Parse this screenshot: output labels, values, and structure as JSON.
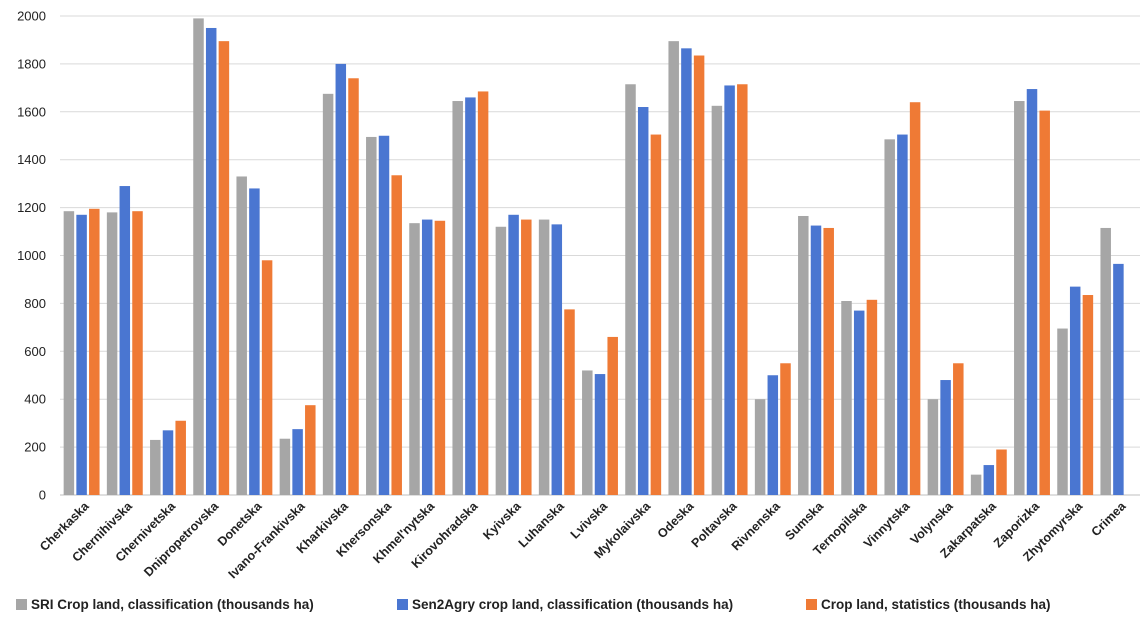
{
  "chart_data": {
    "type": "bar",
    "title": "",
    "xlabel": "",
    "ylabel": "",
    "ylim": [
      0,
      2000
    ],
    "yticks": [
      0,
      200,
      400,
      600,
      800,
      1000,
      1200,
      1400,
      1600,
      1800,
      2000
    ],
    "grid": true,
    "legend_position": "bottom",
    "categories": [
      "Cherkaska",
      "Chernihivska",
      "Chernivetska",
      "Dnipropetrovska",
      "Donetska",
      "Ivano-Frankivska",
      "Kharkivska",
      "Khersonska",
      "Khmel'nytska",
      "Kirovohradska",
      "Kyivska",
      "Luhanska",
      "Lvivska",
      "Mykolaivska",
      "Odeska",
      "Poltavska",
      "Rivnenska",
      "Sumska",
      "Ternopilska",
      "Vinnytska",
      "Volynska",
      "Zakarpatska",
      "Zaporizka",
      "Zhytomyrska",
      "Crimea"
    ],
    "series": [
      {
        "name": "SRI Crop land, classification (thousands ha)",
        "color": "#a6a6a6",
        "values": [
          1185,
          1180,
          230,
          1990,
          1330,
          235,
          1675,
          1495,
          1135,
          1645,
          1120,
          1150,
          520,
          1715,
          1895,
          1625,
          400,
          1165,
          810,
          1485,
          400,
          85,
          1645,
          695,
          1115
        ]
      },
      {
        "name": "Sen2Agry crop land, classification (thousands ha)",
        "color": "#4a76d1",
        "values": [
          1170,
          1290,
          270,
          1950,
          1280,
          275,
          1800,
          1500,
          1150,
          1660,
          1170,
          1130,
          505,
          1620,
          1865,
          1710,
          500,
          1125,
          770,
          1505,
          480,
          125,
          1695,
          870,
          965
        ]
      },
      {
        "name": "Crop land, statistics (thousands ha)",
        "color": "#ef7a35",
        "values": [
          1195,
          1185,
          310,
          1895,
          980,
          375,
          1740,
          1335,
          1145,
          1685,
          1150,
          775,
          660,
          1505,
          1835,
          1715,
          550,
          1115,
          815,
          1640,
          550,
          190,
          1605,
          835,
          null
        ]
      }
    ]
  }
}
